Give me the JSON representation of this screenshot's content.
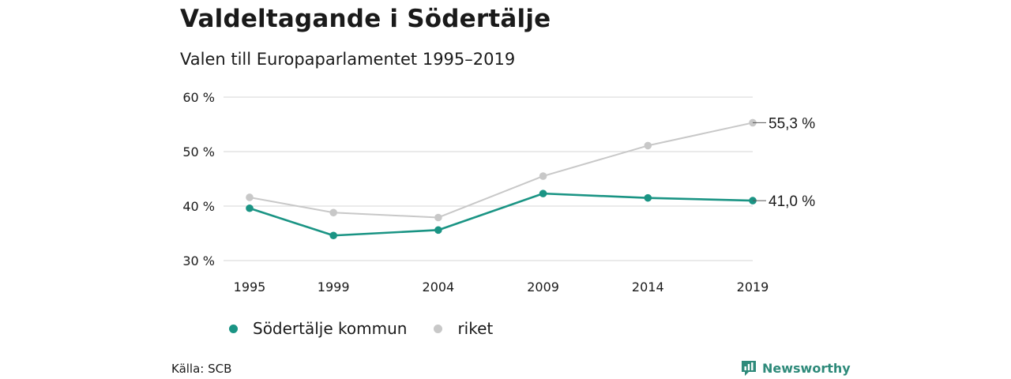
{
  "header": {
    "title": "Valdeltagande i Södertälje",
    "subtitle": "Valen till Europaparlamentet 1995–2019"
  },
  "footer": {
    "source": "Källa: SCB",
    "brand": "Newsworthy",
    "brand_icon": "bar-chart-icon"
  },
  "colors": {
    "sodertalje": "#1a9484",
    "riket": "#c8c8c8",
    "grid": "#dddddd",
    "text": "#1a1a1a",
    "brand": "#2e8a7a"
  },
  "chart_data": {
    "type": "line",
    "x": [
      "1995",
      "1999",
      "2004",
      "2009",
      "2014",
      "2019"
    ],
    "ylim": [
      30,
      60
    ],
    "yticks": [
      30,
      40,
      50,
      60
    ],
    "ytick_labels": [
      "30 %",
      "40 %",
      "50 %",
      "60 %"
    ],
    "grid": true,
    "legend_position": "bottom-left",
    "series": [
      {
        "name": "Södertälje kommun",
        "values": [
          39.6,
          34.6,
          35.6,
          42.3,
          41.5,
          41.0
        ],
        "end_label": "41,0 %"
      },
      {
        "name": "riket",
        "values": [
          41.6,
          38.8,
          37.9,
          45.5,
          51.1,
          55.3
        ],
        "end_label": "55,3 %"
      }
    ]
  }
}
